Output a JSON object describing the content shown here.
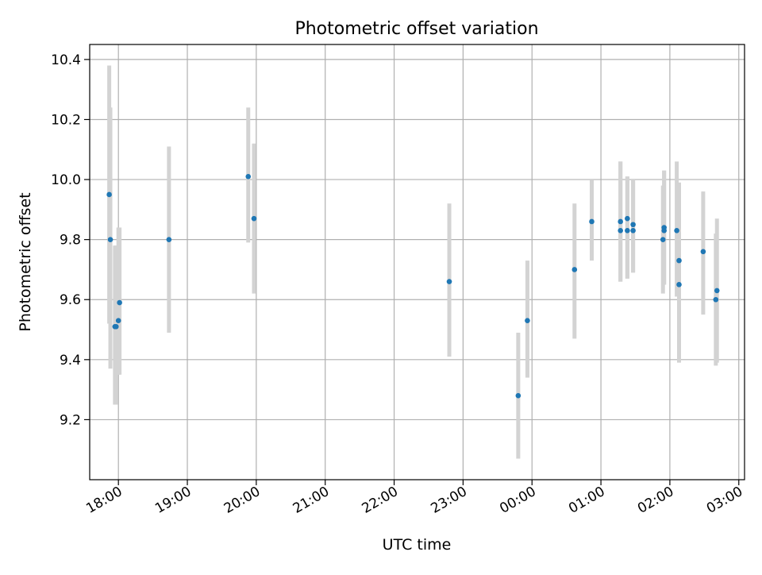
{
  "chart_data": {
    "type": "scatter",
    "title": "Photometric offset variation",
    "xlabel": "UTC time",
    "ylabel": "Photometric offset",
    "x_unit": "UTC time (HH:MM)",
    "xlim": [
      "17:35",
      "03:05"
    ],
    "ylim": [
      9.0,
      10.45
    ],
    "x_ticks": [
      "18:00",
      "19:00",
      "20:00",
      "21:00",
      "22:00",
      "23:00",
      "00:00",
      "01:00",
      "02:00",
      "03:00"
    ],
    "y_ticks": [
      "9.2",
      "9.4",
      "9.6",
      "9.8",
      "10.0",
      "10.2",
      "10.4"
    ],
    "y_tick_values": [
      9.2,
      9.4,
      9.6,
      9.8,
      10.0,
      10.2,
      10.4
    ],
    "grid": true,
    "marker_color": "#1f77b4",
    "errorbar_color": "#d3d3d3",
    "points": [
      {
        "t": "17:52",
        "y": 9.95,
        "ylo": 9.52,
        "yhi": 10.38
      },
      {
        "t": "17:53",
        "y": 9.8,
        "ylo": 9.37,
        "yhi": 10.24
      },
      {
        "t": "17:57",
        "y": 9.51,
        "ylo": 9.25,
        "yhi": 9.78
      },
      {
        "t": "17:58",
        "y": 9.51,
        "ylo": 9.25,
        "yhi": 9.78
      },
      {
        "t": "18:00",
        "y": 9.53,
        "ylo": 9.35,
        "yhi": 9.84
      },
      {
        "t": "18:01",
        "y": 9.59,
        "ylo": 9.35,
        "yhi": 9.84
      },
      {
        "t": "18:44",
        "y": 9.8,
        "ylo": 9.49,
        "yhi": 10.11
      },
      {
        "t": "19:53",
        "y": 10.01,
        "ylo": 9.79,
        "yhi": 10.24
      },
      {
        "t": "19:58",
        "y": 9.87,
        "ylo": 9.62,
        "yhi": 10.12
      },
      {
        "t": "22:48",
        "y": 9.66,
        "ylo": 9.41,
        "yhi": 9.92
      },
      {
        "t": "23:48",
        "y": 9.28,
        "ylo": 9.07,
        "yhi": 9.49
      },
      {
        "t": "23:56",
        "y": 9.53,
        "ylo": 9.34,
        "yhi": 9.73
      },
      {
        "t": "00:37",
        "y": 9.7,
        "ylo": 9.47,
        "yhi": 9.92
      },
      {
        "t": "00:52",
        "y": 9.86,
        "ylo": 9.73,
        "yhi": 10.0
      },
      {
        "t": "01:17",
        "y": 9.86,
        "ylo": 9.66,
        "yhi": 10.06
      },
      {
        "t": "01:17",
        "y": 9.83,
        "ylo": 9.66,
        "yhi": 10.06
      },
      {
        "t": "01:23",
        "y": 9.83,
        "ylo": 9.67,
        "yhi": 10.01
      },
      {
        "t": "01:23",
        "y": 9.87,
        "ylo": 9.67,
        "yhi": 10.01
      },
      {
        "t": "01:28",
        "y": 9.85,
        "ylo": 9.69,
        "yhi": 10.0
      },
      {
        "t": "01:28",
        "y": 9.83,
        "ylo": 9.69,
        "yhi": 10.0
      },
      {
        "t": "01:54",
        "y": 9.8,
        "ylo": 9.62,
        "yhi": 9.98
      },
      {
        "t": "01:55",
        "y": 9.84,
        "ylo": 9.65,
        "yhi": 10.03
      },
      {
        "t": "01:55",
        "y": 9.83,
        "ylo": 9.65,
        "yhi": 10.03
      },
      {
        "t": "02:06",
        "y": 9.83,
        "ylo": 9.61,
        "yhi": 10.06
      },
      {
        "t": "02:08",
        "y": 9.73,
        "ylo": 9.47,
        "yhi": 9.99
      },
      {
        "t": "02:08",
        "y": 9.65,
        "ylo": 9.39,
        "yhi": 9.99
      },
      {
        "t": "02:29",
        "y": 9.76,
        "ylo": 9.55,
        "yhi": 9.96
      },
      {
        "t": "02:40",
        "y": 9.6,
        "ylo": 9.38,
        "yhi": 9.82
      },
      {
        "t": "02:41",
        "y": 9.63,
        "ylo": 9.39,
        "yhi": 9.87
      }
    ]
  }
}
